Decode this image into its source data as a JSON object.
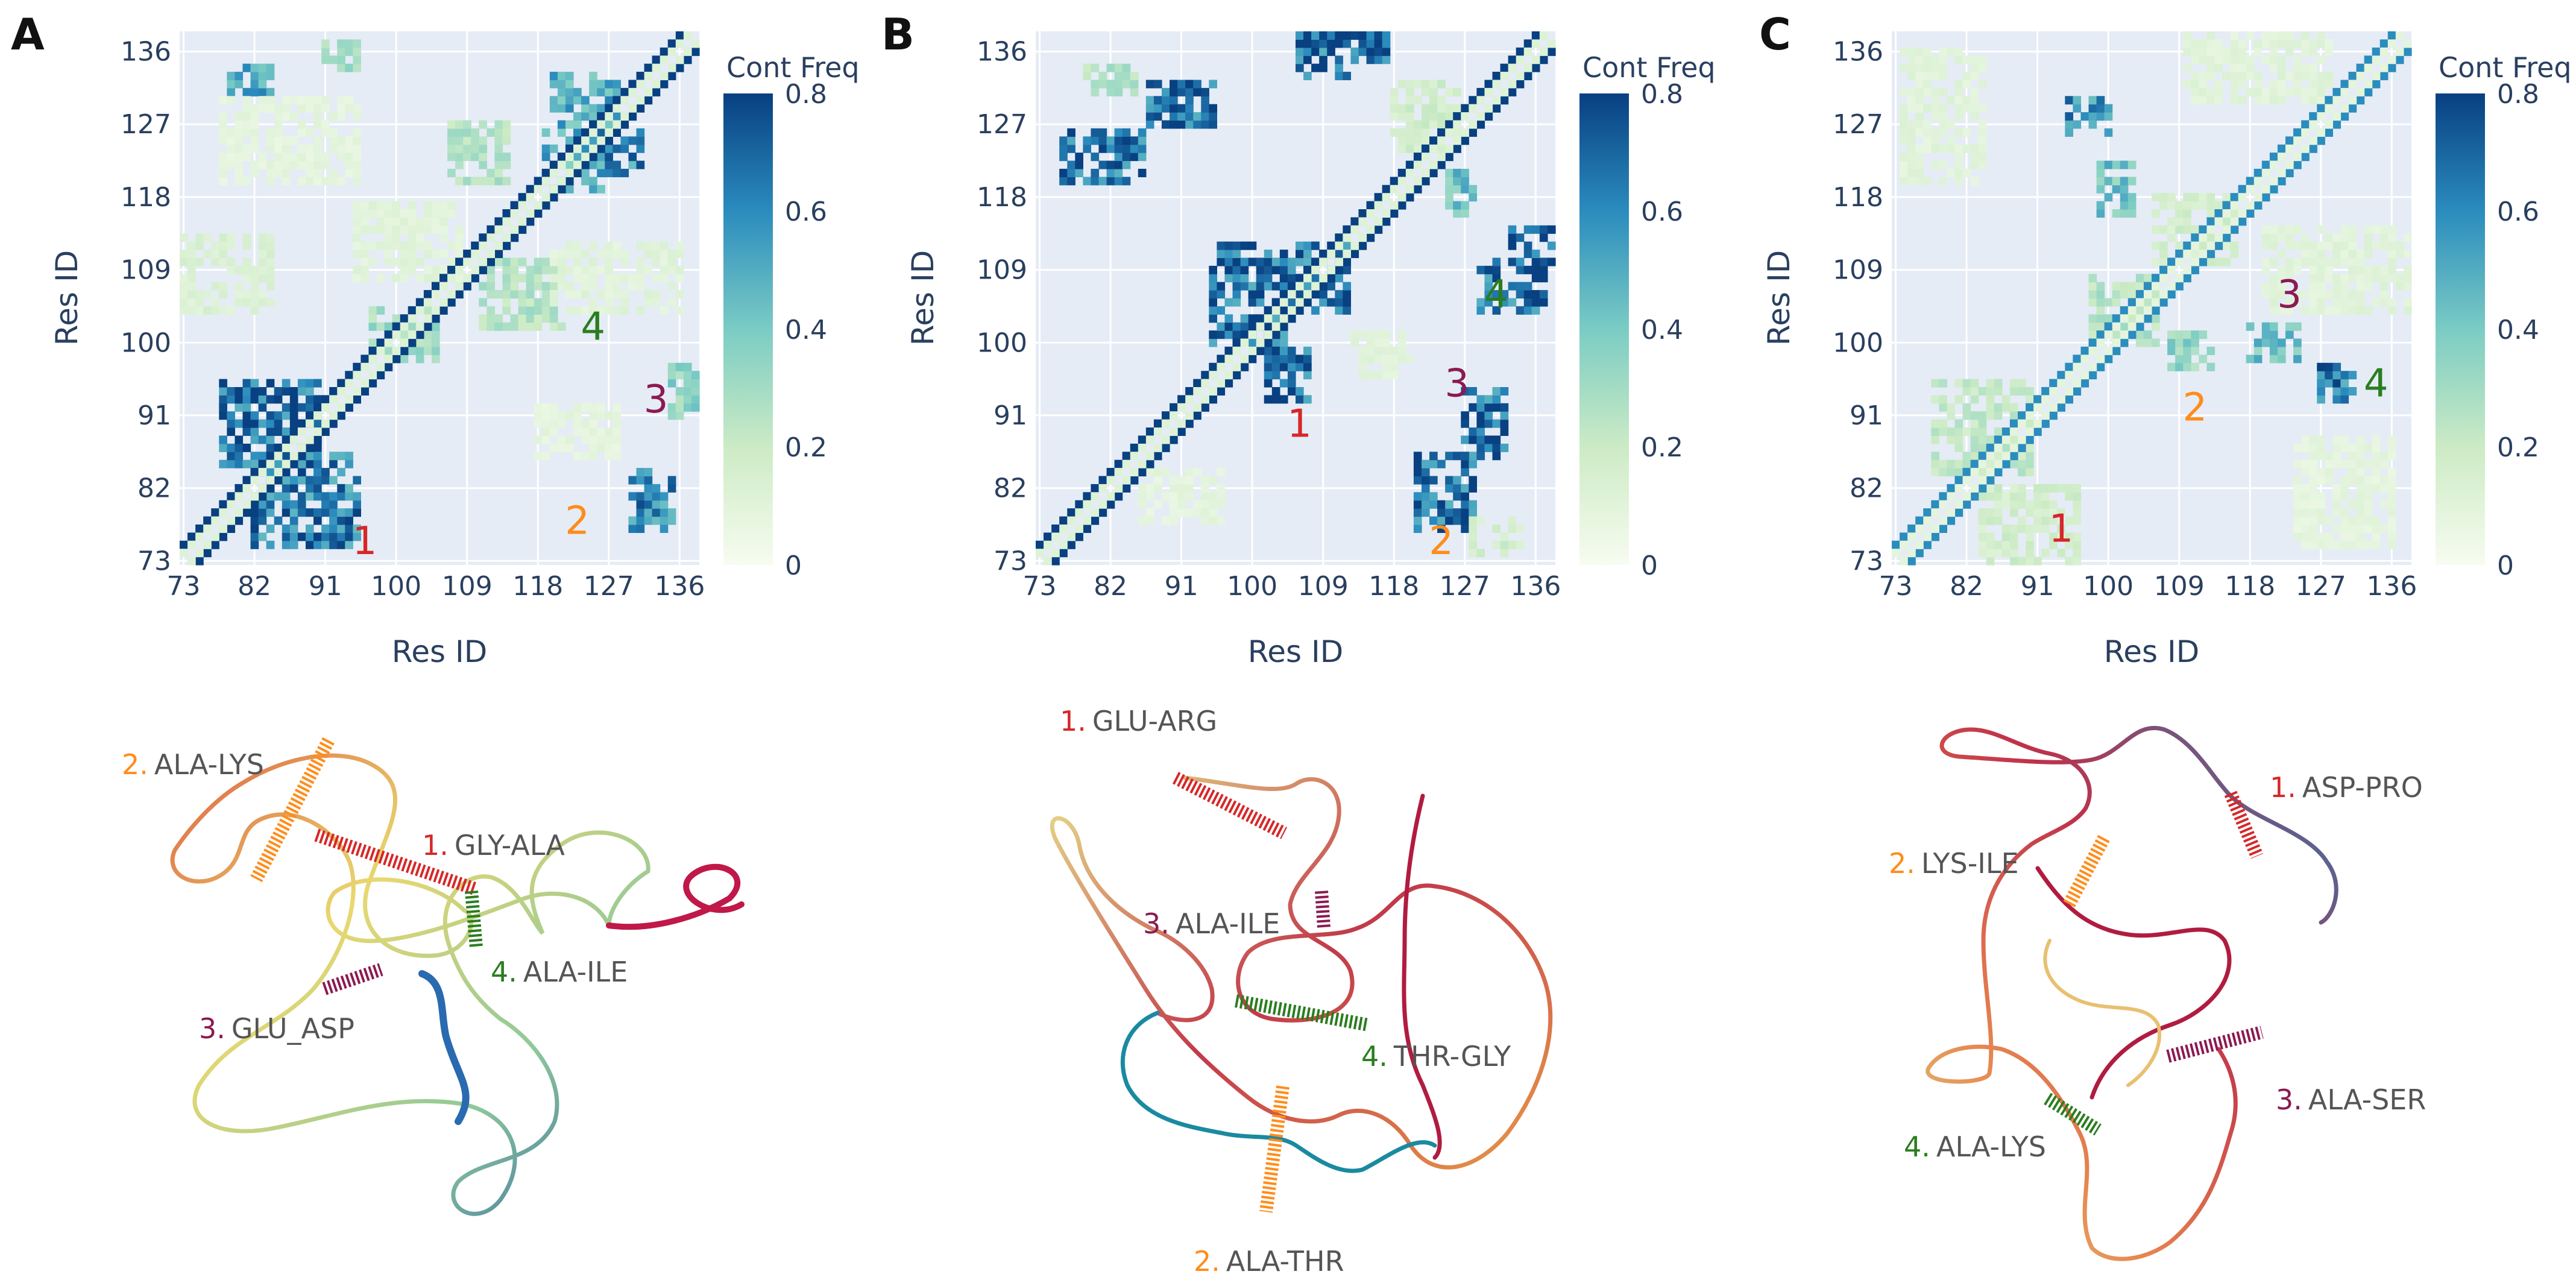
{
  "figure": {
    "colorbar_colors": [
      "#f7fcf0",
      "#ccebc5",
      "#7bccc4",
      "#2b8cbe",
      "#084081"
    ],
    "background_color": "#e5ecf6",
    "contact_colors": {
      "1": "#d62728",
      "2": "#ff8c1a",
      "3": "#8b1a52",
      "4": "#2a7d1f"
    }
  },
  "chart_data": [
    {
      "type": "heatmap",
      "panel_label": "A",
      "xlabel": "Res ID",
      "ylabel": "Res ID",
      "xlim": [
        72.5,
        138.5
      ],
      "ylim": [
        72.5,
        138.5
      ],
      "x_ticks": [
        73,
        82,
        91,
        100,
        109,
        118,
        127,
        136
      ],
      "x_tick_labels": [
        "73",
        "82",
        "91",
        "100",
        "109",
        "118",
        "127",
        "136"
      ],
      "y_ticks": [
        73,
        82,
        91,
        100,
        109,
        118,
        127,
        136
      ],
      "y_tick_labels": [
        "73",
        "82",
        "91",
        "100",
        "109",
        "118",
        "127",
        "136"
      ],
      "colorbar": {
        "title": "Cont Freq",
        "range": [
          0,
          0.8
        ],
        "ticks": [
          "0.8",
          "0.6",
          "0.4",
          "0.2",
          "0"
        ]
      },
      "diagonal_value": 0.8,
      "clusters": [
        {
          "x": [
            78,
            90
          ],
          "y": [
            85,
            95
          ],
          "value": 0.8
        },
        {
          "x": [
            82,
            95
          ],
          "y": [
            75,
            86
          ],
          "value": 0.75
        },
        {
          "x": [
            130,
            135
          ],
          "y": [
            77,
            84
          ],
          "value": 0.7
        },
        {
          "x": [
            119,
            126
          ],
          "y": [
            119,
            126
          ],
          "value": 0.6
        },
        {
          "x": [
            124,
            131
          ],
          "y": [
            121,
            126
          ],
          "value": 0.7
        },
        {
          "x": [
            120,
            128
          ],
          "y": [
            127,
            133
          ],
          "value": 0.6
        },
        {
          "x": [
            79,
            84
          ],
          "y": [
            131,
            134
          ],
          "value": 0.6
        },
        {
          "x": [
            91,
            95
          ],
          "y": [
            134,
            137
          ],
          "value": 0.35
        },
        {
          "x": [
            107,
            114
          ],
          "y": [
            120,
            127
          ],
          "value": 0.3
        },
        {
          "x": [
            111,
            121
          ],
          "y": [
            102,
            110
          ],
          "value": 0.3
        },
        {
          "x": [
            97,
            105
          ],
          "y": [
            98,
            104
          ],
          "value": 0.35
        },
        {
          "x": [
            135,
            138
          ],
          "y": [
            91,
            97
          ],
          "value": 0.4
        },
        {
          "x": [
            73,
            84
          ],
          "y": [
            104,
            113
          ],
          "value": 0.15
        },
        {
          "x": [
            95,
            108
          ],
          "y": [
            108,
            117
          ],
          "value": 0.12
        },
        {
          "x": [
            120,
            136
          ],
          "y": [
            104,
            112
          ],
          "value": 0.12
        },
        {
          "x": [
            118,
            128
          ],
          "y": [
            86,
            92
          ],
          "value": 0.1
        },
        {
          "x": [
            78,
            95
          ],
          "y": [
            120,
            130
          ],
          "value": 0.1
        }
      ],
      "annotations": [
        {
          "text": "1",
          "x": 96,
          "y": 75.5,
          "color_key": "1"
        },
        {
          "text": "2",
          "x": 123,
          "y": 78,
          "color_key": "2"
        },
        {
          "text": "3",
          "x": 133,
          "y": 93,
          "color_key": "3"
        },
        {
          "text": "4",
          "x": 125,
          "y": 102,
          "color_key": "4"
        }
      ],
      "contacts": [
        {
          "num": "1.",
          "pair": "GLY-ALA",
          "color_key": "1"
        },
        {
          "num": "2.",
          "pair": "ALA-LYS",
          "color_key": "2"
        },
        {
          "num": "3.",
          "pair": "GLU_ASP",
          "color_key": "3"
        },
        {
          "num": "4.",
          "pair": "ALA-ILE",
          "color_key": "4"
        }
      ]
    },
    {
      "type": "heatmap",
      "panel_label": "B",
      "xlabel": "Res ID",
      "ylabel": "Res ID",
      "xlim": [
        72.5,
        138.5
      ],
      "ylim": [
        72.5,
        138.5
      ],
      "x_ticks": [
        73,
        82,
        91,
        100,
        109,
        118,
        127,
        136
      ],
      "x_tick_labels": [
        "73",
        "82",
        "91",
        "100",
        "109",
        "118",
        "127",
        "136"
      ],
      "y_ticks": [
        73,
        82,
        91,
        100,
        109,
        118,
        127,
        136
      ],
      "y_tick_labels": [
        "73",
        "82",
        "91",
        "100",
        "109",
        "118",
        "127",
        "136"
      ],
      "colorbar": {
        "title": "Cont Freq",
        "range": [
          0,
          0.8
        ],
        "ticks": [
          "0.8",
          "0.6",
          "0.4",
          "0.2",
          "0"
        ]
      },
      "diagonal_value": 0.8,
      "clusters": [
        {
          "x": [
            76,
            86
          ],
          "y": [
            120,
            126
          ],
          "value": 0.8
        },
        {
          "x": [
            87,
            95
          ],
          "y": [
            127,
            132
          ],
          "value": 0.8
        },
        {
          "x": [
            106,
            112
          ],
          "y": [
            133,
            139
          ],
          "value": 0.8
        },
        {
          "x": [
            113,
            117
          ],
          "y": [
            135,
            138
          ],
          "value": 0.8
        },
        {
          "x": [
            95,
            104
          ],
          "y": [
            100,
            112
          ],
          "value": 0.8
        },
        {
          "x": [
            102,
            107
          ],
          "y": [
            93,
            99
          ],
          "value": 0.8
        },
        {
          "x": [
            104,
            112
          ],
          "y": [
            104,
            112
          ],
          "value": 0.8
        },
        {
          "x": [
            121,
            128
          ],
          "y": [
            77,
            86
          ],
          "value": 0.8
        },
        {
          "x": [
            127,
            132
          ],
          "y": [
            86,
            94
          ],
          "value": 0.8
        },
        {
          "x": [
            129,
            137
          ],
          "y": [
            104,
            110
          ],
          "value": 0.8
        },
        {
          "x": [
            133,
            138
          ],
          "y": [
            110,
            114
          ],
          "value": 0.8
        },
        {
          "x": [
            125,
            128
          ],
          "y": [
            116,
            121
          ],
          "value": 0.5
        },
        {
          "x": [
            79,
            85
          ],
          "y": [
            131,
            134
          ],
          "value": 0.3
        },
        {
          "x": [
            118,
            126
          ],
          "y": [
            124,
            132
          ],
          "value": 0.2
        },
        {
          "x": [
            86,
            96
          ],
          "y": [
            78,
            84
          ],
          "value": 0.1
        },
        {
          "x": [
            113,
            120
          ],
          "y": [
            96,
            101
          ],
          "value": 0.12
        },
        {
          "x": [
            128,
            134
          ],
          "y": [
            74,
            78
          ],
          "value": 0.2
        }
      ],
      "annotations": [
        {
          "text": "1",
          "x": 106,
          "y": 90,
          "color_key": "1"
        },
        {
          "text": "2",
          "x": 124,
          "y": 75.5,
          "color_key": "2"
        },
        {
          "text": "3",
          "x": 126,
          "y": 95,
          "color_key": "3"
        },
        {
          "text": "4",
          "x": 131,
          "y": 106,
          "color_key": "4"
        }
      ],
      "contacts": [
        {
          "num": "1.",
          "pair": "GLU-ARG",
          "color_key": "1"
        },
        {
          "num": "2.",
          "pair": "ALA-THR",
          "color_key": "2"
        },
        {
          "num": "3.",
          "pair": "ALA-ILE",
          "color_key": "3"
        },
        {
          "num": "4.",
          "pair": "THR-GLY",
          "color_key": "4"
        }
      ]
    },
    {
      "type": "heatmap",
      "panel_label": "C",
      "xlabel": "Res ID",
      "ylabel": "Res ID",
      "xlim": [
        72.5,
        138.5
      ],
      "ylim": [
        72.5,
        138.5
      ],
      "x_ticks": [
        73,
        82,
        91,
        100,
        109,
        118,
        127,
        136
      ],
      "x_tick_labels": [
        "73",
        "82",
        "91",
        "100",
        "109",
        "118",
        "127",
        "136"
      ],
      "y_ticks": [
        73,
        82,
        91,
        100,
        109,
        118,
        127,
        136
      ],
      "y_tick_labels": [
        "73",
        "82",
        "91",
        "100",
        "109",
        "118",
        "127",
        "136"
      ],
      "colorbar": {
        "title": "Cont Freq",
        "range": [
          0,
          0.8
        ],
        "ticks": [
          "0.8",
          "0.6",
          "0.4",
          "0.2",
          "0"
        ]
      },
      "diagonal_value": 0.6,
      "clusters": [
        {
          "x": [
            95,
            100
          ],
          "y": [
            126,
            130
          ],
          "value": 0.7
        },
        {
          "x": [
            99,
            103
          ],
          "y": [
            116,
            122
          ],
          "value": 0.5
        },
        {
          "x": [
            127,
            131
          ],
          "y": [
            93,
            97
          ],
          "value": 0.75
        },
        {
          "x": [
            118,
            124
          ],
          "y": [
            98,
            102
          ],
          "value": 0.5
        },
        {
          "x": [
            108,
            113
          ],
          "y": [
            97,
            101
          ],
          "value": 0.4
        },
        {
          "x": [
            98,
            106
          ],
          "y": [
            100,
            108
          ],
          "value": 0.3
        },
        {
          "x": [
            78,
            90
          ],
          "y": [
            84,
            95
          ],
          "value": 0.25
        },
        {
          "x": [
            84,
            96
          ],
          "y": [
            73,
            82
          ],
          "value": 0.2
        },
        {
          "x": [
            74,
            84
          ],
          "y": [
            120,
            136
          ],
          "value": 0.12
        },
        {
          "x": [
            110,
            128
          ],
          "y": [
            130,
            138
          ],
          "value": 0.12
        },
        {
          "x": [
            120,
            138
          ],
          "y": [
            104,
            114
          ],
          "value": 0.12
        },
        {
          "x": [
            124,
            136
          ],
          "y": [
            75,
            88
          ],
          "value": 0.1
        },
        {
          "x": [
            106,
            116
          ],
          "y": [
            110,
            118
          ],
          "value": 0.2
        }
      ],
      "annotations": [
        {
          "text": "1",
          "x": 94,
          "y": 77,
          "color_key": "1"
        },
        {
          "text": "2",
          "x": 111,
          "y": 92,
          "color_key": "2"
        },
        {
          "text": "3",
          "x": 123,
          "y": 106,
          "color_key": "3"
        },
        {
          "text": "4",
          "x": 134,
          "y": 95,
          "color_key": "4"
        }
      ],
      "contacts": [
        {
          "num": "1.",
          "pair": "ASP-PRO",
          "color_key": "1"
        },
        {
          "num": "2.",
          "pair": "LYS-ILE",
          "color_key": "2"
        },
        {
          "num": "3.",
          "pair": "ALA-SER",
          "color_key": "3"
        },
        {
          "num": "4.",
          "pair": "ALA-LYS",
          "color_key": "4"
        }
      ]
    }
  ]
}
